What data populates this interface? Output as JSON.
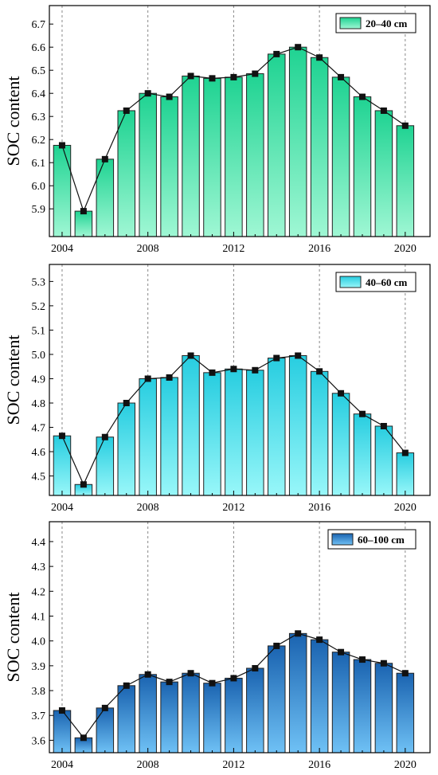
{
  "chart_data": [
    {
      "type": "bar",
      "legend": "20–40 cm",
      "legend_position": "top-right",
      "ylabel": "SOC content",
      "ylim": [
        5.78,
        6.78
      ],
      "yticks": [
        "5.9",
        "6.0",
        "6.1",
        "6.2",
        "6.3",
        "6.4",
        "6.5",
        "6.6",
        "6.7"
      ],
      "xticks": [
        "2004",
        "2008",
        "2012",
        "2016",
        "2020"
      ],
      "categories": [
        "2004",
        "2005",
        "2006",
        "2007",
        "2008",
        "2009",
        "2010",
        "2011",
        "2012",
        "2013",
        "2014",
        "2015",
        "2016",
        "2017",
        "2018",
        "2019",
        "2020"
      ],
      "values": [
        6.175,
        5.89,
        6.115,
        6.325,
        6.4,
        6.385,
        6.475,
        6.465,
        6.47,
        6.485,
        6.57,
        6.6,
        6.555,
        6.47,
        6.385,
        6.325,
        6.26
      ],
      "line_overlay": true,
      "grid": "vertical dashed at labeled years",
      "colors": {
        "top": "#1fd392",
        "bottom": "#9ff7d4"
      }
    },
    {
      "type": "bar",
      "legend": "40–60 cm",
      "legend_position": "top-right",
      "ylabel": "SOC content",
      "ylim": [
        4.42,
        5.37
      ],
      "yticks": [
        "4.5",
        "4.6",
        "4.7",
        "4.8",
        "4.9",
        "5.0",
        "5.1",
        "5.2",
        "5.3"
      ],
      "xticks": [
        "2004",
        "2008",
        "2012",
        "2016",
        "2020"
      ],
      "categories": [
        "2004",
        "2005",
        "2006",
        "2007",
        "2008",
        "2009",
        "2010",
        "2011",
        "2012",
        "2013",
        "2014",
        "2015",
        "2016",
        "2017",
        "2018",
        "2019",
        "2020"
      ],
      "values": [
        4.665,
        4.465,
        4.66,
        4.8,
        4.9,
        4.905,
        4.995,
        4.925,
        4.94,
        4.935,
        4.985,
        4.995,
        4.93,
        4.84,
        4.755,
        4.705,
        4.595
      ],
      "line_overlay": true,
      "grid": "vertical dashed at labeled years",
      "colors": {
        "top": "#27cde0",
        "bottom": "#98f7f9"
      }
    },
    {
      "type": "bar",
      "legend": "60–100 cm",
      "legend_position": "top-right",
      "ylabel": "SOC content",
      "ylim": [
        3.55,
        4.48
      ],
      "yticks": [
        "3.6",
        "3.7",
        "3.8",
        "3.9",
        "4.0",
        "4.1",
        "4.2",
        "4.3",
        "4.4"
      ],
      "xticks": [
        "2004",
        "2008",
        "2012",
        "2016",
        "2020"
      ],
      "categories": [
        "2004",
        "2005",
        "2006",
        "2007",
        "2008",
        "2009",
        "2010",
        "2011",
        "2012",
        "2013",
        "2014",
        "2015",
        "2016",
        "2017",
        "2018",
        "2019",
        "2020"
      ],
      "values": [
        3.72,
        3.61,
        3.73,
        3.82,
        3.865,
        3.835,
        3.87,
        3.83,
        3.85,
        3.89,
        3.98,
        4.03,
        4.005,
        3.955,
        3.925,
        3.91,
        3.87
      ],
      "line_overlay": true,
      "grid": "vertical dashed at labeled years",
      "colors": {
        "top": "#1a63b0",
        "bottom": "#6fc1f5"
      }
    }
  ]
}
